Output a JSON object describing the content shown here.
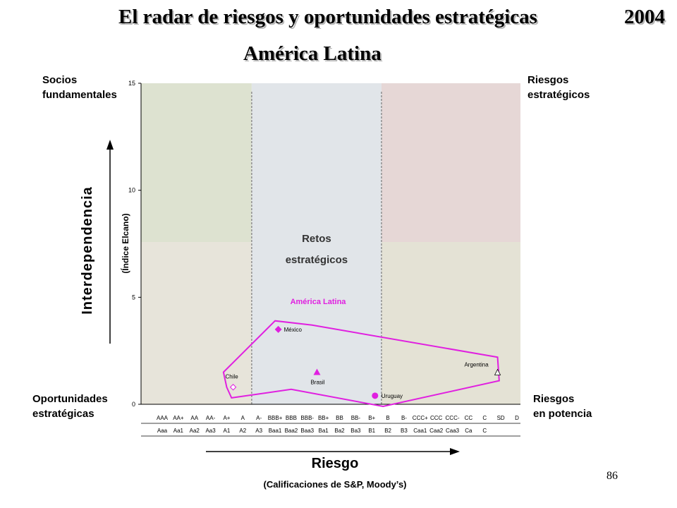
{
  "slide": {
    "title": "El radar de riesgos y oportunidades estratégicas",
    "year": "2004",
    "subtitle": "América Latina",
    "page_number": "86"
  },
  "quadrants": {
    "top_left": [
      "Socios",
      "fundamentales"
    ],
    "top_right": [
      "Riesgos",
      "estratégicos"
    ],
    "bottom_left": [
      "Oportunidades",
      "estratégicas"
    ],
    "bottom_right": [
      "Riesgos",
      "en potencia"
    ],
    "center": [
      "Retos",
      "estratégicos"
    ]
  },
  "colors": {
    "zone_green": "#dde2d0",
    "zone_beige": "#e7e4da",
    "zone_blue": "#e1e5e9",
    "zone_pink": "#e6d7d6",
    "zone_beige_right": "#e4e2d5",
    "magenta": "#e020e0"
  },
  "chart_data": {
    "type": "scatter",
    "title": "",
    "ylabel": "Interdependencia",
    "ylabel_sub": "(Índice Elcano)",
    "xlabel": "Riesgo",
    "xlabel_sub": "(Calificaciones de S&P, Moody’s)",
    "ylim": [
      0,
      15
    ],
    "yticks": [
      0,
      5,
      10,
      15
    ],
    "x_categories_sp": [
      "AAA",
      "AA+",
      "AA",
      "AA-",
      "A+",
      "A",
      "A-",
      "BBB+",
      "BBB",
      "BBB-",
      "BB+",
      "BB",
      "BB-",
      "B+",
      "B",
      "B-",
      "CCC+",
      "CCC",
      "CCC-",
      "CC",
      "C",
      "SD",
      "D"
    ],
    "x_categories_moodys": [
      "Aaa",
      "Aa1",
      "Aa2",
      "Aa3",
      "A1",
      "A2",
      "A3",
      "Baa1",
      "Baa2",
      "Baa3",
      "Ba1",
      "Ba2",
      "Ba3",
      "B1",
      "B2",
      "B3",
      "Caa1",
      "Caa2",
      "Caa3",
      "Ca",
      "C"
    ],
    "points": [
      {
        "name": "México",
        "x": 7.2,
        "y": 3.5,
        "marker": "diamond-filled"
      },
      {
        "name": "Brasil",
        "x": 9.6,
        "y": 1.5,
        "marker": "triangle-filled"
      },
      {
        "name": "Chile",
        "x": 4.4,
        "y": 0.8,
        "marker": "diamond-open"
      },
      {
        "name": "Uruguay",
        "x": 13.2,
        "y": 0.4,
        "marker": "circle-filled"
      },
      {
        "name": "Argentina",
        "x": 20.8,
        "y": 1.5,
        "marker": "triangle-open"
      }
    ],
    "region": {
      "label": "América Latina",
      "polygon": [
        [
          3.8,
          1.5
        ],
        [
          4.0,
          0.8
        ],
        [
          4.3,
          0.3
        ],
        [
          8.0,
          0.7
        ],
        [
          13.7,
          -0.1
        ],
        [
          20.9,
          1.1
        ],
        [
          20.8,
          2.2
        ],
        [
          9.3,
          3.7
        ],
        [
          7.0,
          3.9
        ]
      ]
    }
  }
}
